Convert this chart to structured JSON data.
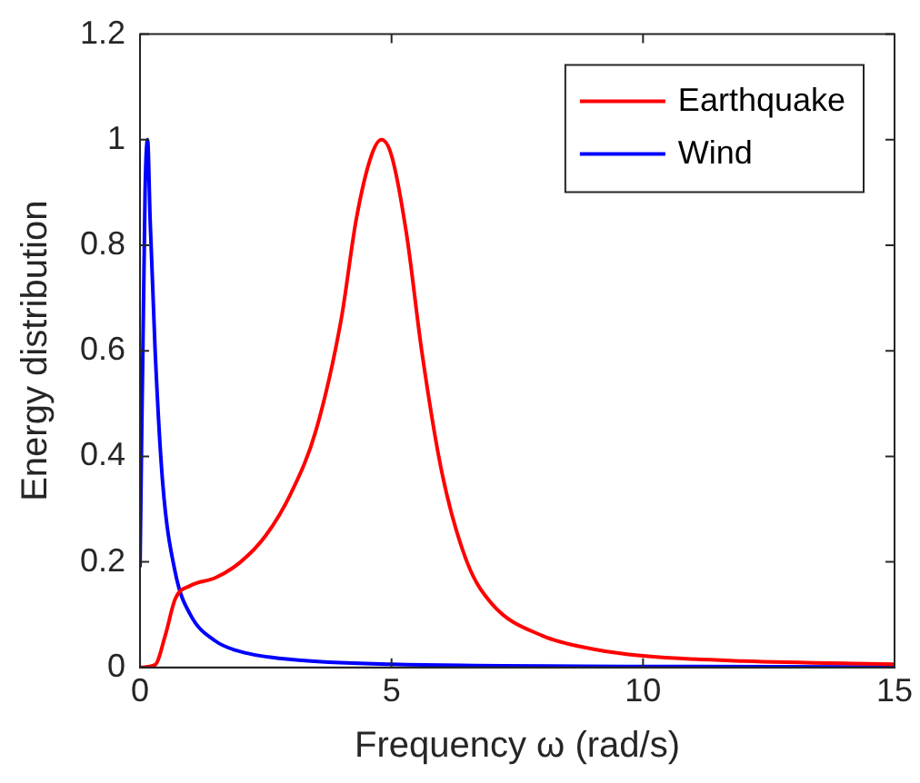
{
  "chart_data": {
    "type": "line",
    "xlabel": "Frequency ω (rad/s)",
    "ylabel": "Energy distribution",
    "xlim": [
      0,
      15
    ],
    "xticks": [
      0,
      5,
      10,
      15
    ],
    "ylim": [
      0,
      1.2
    ],
    "yticks": [
      0,
      0.2,
      0.4,
      0.6,
      0.8,
      1,
      1.2
    ],
    "grid": false,
    "legend": "top right",
    "marker": "none",
    "line_style": "solid",
    "series": [
      {
        "name": "Earthquake",
        "color": "#ff0000",
        "x": [
          0,
          0.3,
          0.5,
          0.7,
          1,
          1.5,
          2,
          2.5,
          3,
          3.5,
          4,
          4.3,
          4.6,
          4.8,
          5,
          5.3,
          5.6,
          6,
          6.5,
          7,
          8,
          9,
          10,
          12,
          15
        ],
        "values": [
          0,
          0.005,
          0.06,
          0.13,
          0.155,
          0.17,
          0.2,
          0.25,
          0.33,
          0.45,
          0.66,
          0.85,
          0.97,
          1,
          0.97,
          0.82,
          0.6,
          0.37,
          0.2,
          0.12,
          0.06,
          0.035,
          0.022,
          0.012,
          0.006
        ]
      },
      {
        "name": "Wind",
        "color": "#0000ff",
        "x": [
          0,
          0.1,
          0.15,
          0.2,
          0.3,
          0.45,
          0.7,
          1,
          1.5,
          2,
          3,
          5,
          10,
          15
        ],
        "values": [
          0.19,
          0.9,
          1,
          0.85,
          0.6,
          0.35,
          0.18,
          0.1,
          0.05,
          0.03,
          0.015,
          0.006,
          0.002,
          0.001
        ]
      }
    ]
  }
}
